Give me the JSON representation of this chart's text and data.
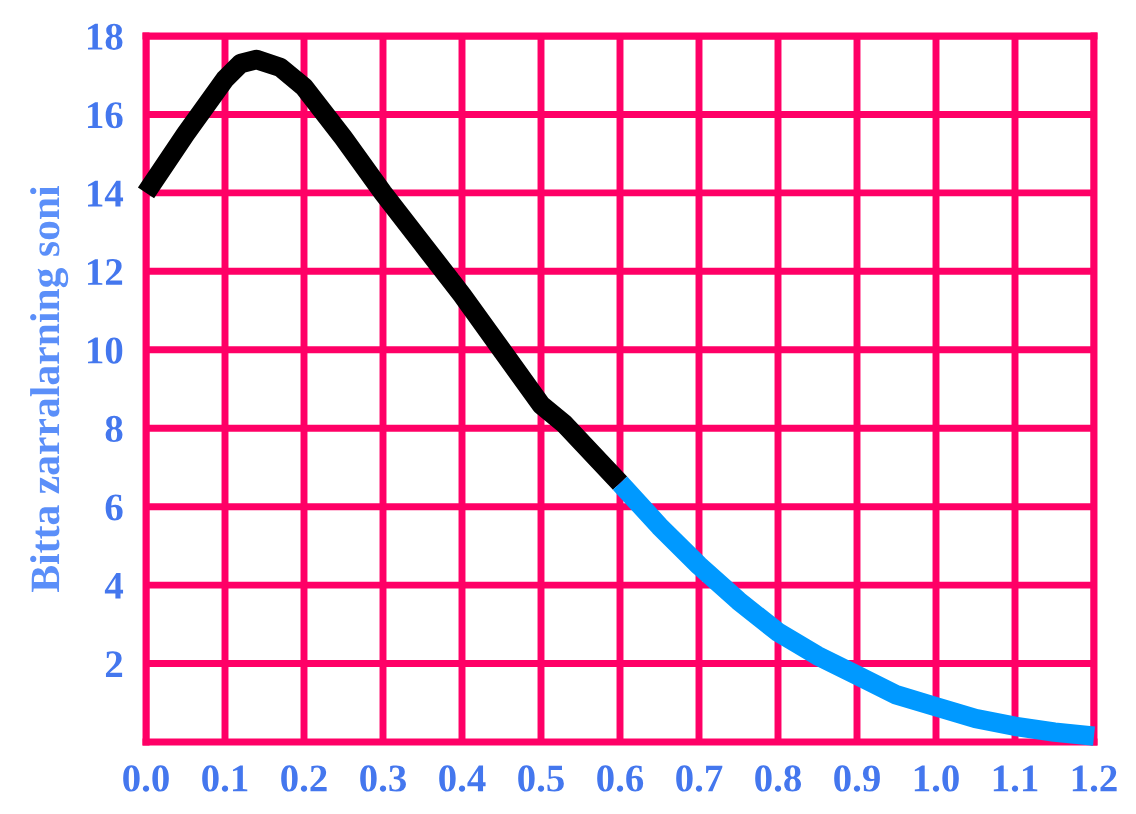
{
  "chart_data": {
    "type": "line",
    "ylabel": "Bitta zarralarning soni",
    "series": [
      {
        "color": "#000000",
        "x": [
          0.0,
          0.05,
          0.1,
          0.12,
          0.14,
          0.17,
          0.2,
          0.25,
          0.3,
          0.35,
          0.4,
          0.45,
          0.5,
          0.53,
          0.6
        ],
        "values": [
          14.0,
          15.5,
          16.9,
          17.3,
          17.4,
          17.2,
          16.7,
          15.4,
          14.0,
          12.7,
          11.4,
          10.0,
          8.6,
          8.1,
          6.6
        ]
      },
      {
        "color": "#0099ff",
        "x": [
          0.6,
          0.65,
          0.7,
          0.75,
          0.8,
          0.85,
          0.9,
          0.95,
          1.0,
          1.05,
          1.1,
          1.15,
          1.2
        ],
        "values": [
          6.6,
          5.5,
          4.5,
          3.6,
          2.8,
          2.2,
          1.7,
          1.2,
          0.9,
          0.6,
          0.4,
          0.25,
          0.15
        ]
      }
    ],
    "xlim": [
      0,
      1.2
    ],
    "ylim": [
      0,
      18
    ],
    "xticks": [
      {
        "value": 0,
        "label": "0.0"
      },
      0.1,
      0.2,
      0.3,
      0.4,
      0.5,
      0.6,
      0.7,
      0.8,
      0.9,
      {
        "value": 1,
        "label": "1.0"
      },
      1.1,
      1.2
    ],
    "yticks": [
      2,
      4,
      6,
      8,
      10,
      12,
      14,
      16,
      18
    ],
    "grid": true,
    "line_style": "solid",
    "marker": "none"
  }
}
